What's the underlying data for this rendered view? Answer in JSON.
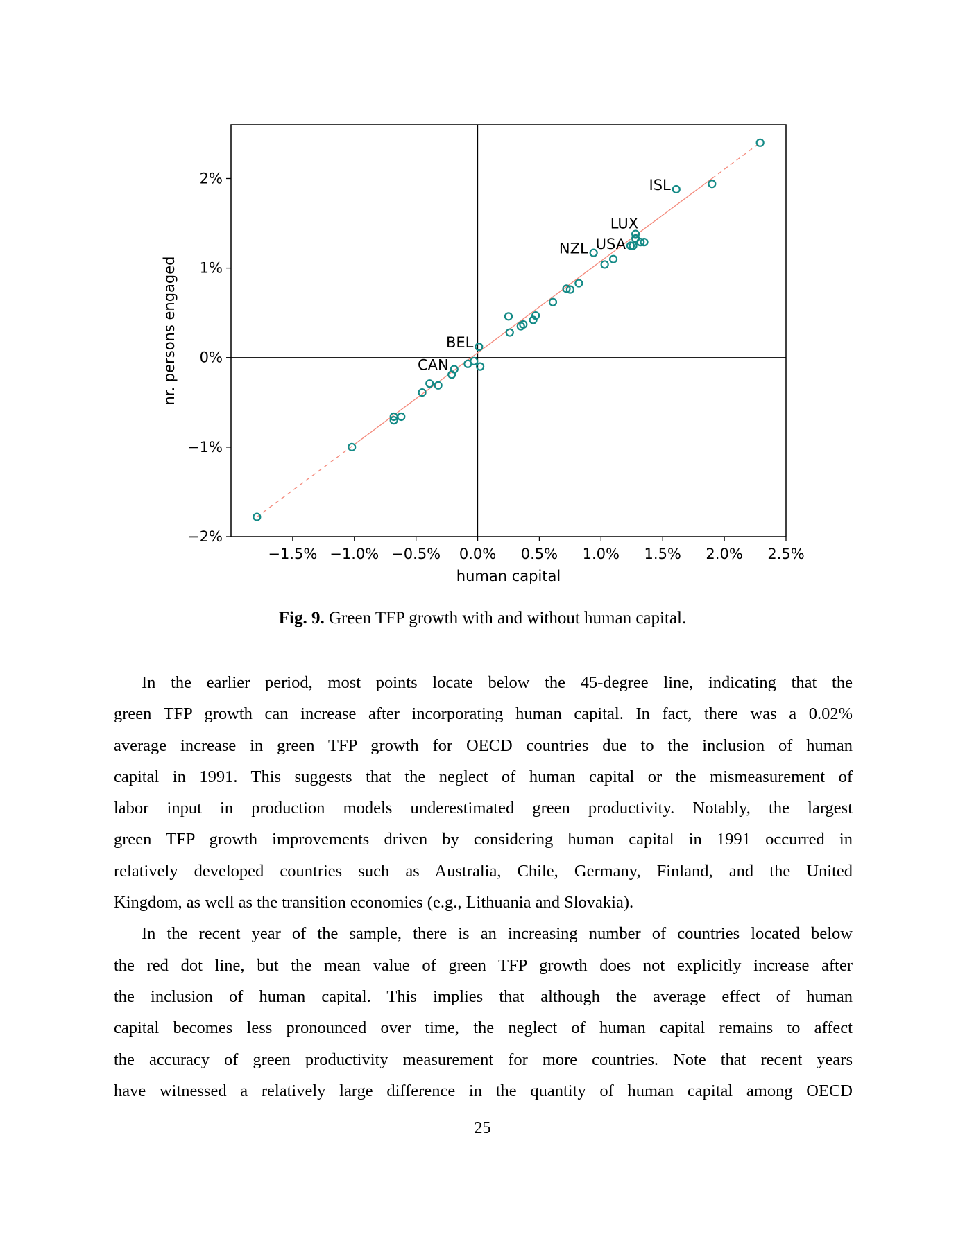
{
  "chart_data": {
    "type": "scatter",
    "xlabel": "human capital",
    "ylabel": "nr. persons engaged",
    "xlim": [
      -2.0,
      2.5
    ],
    "ylim": [
      -2.0,
      2.6
    ],
    "xticks": [
      -1.5,
      -1.0,
      -0.5,
      0.0,
      0.5,
      1.0,
      1.5,
      2.0,
      2.5
    ],
    "xtick_labels": [
      "−1.5%",
      "−1.0%",
      "−0.5%",
      "0.0%",
      "0.5%",
      "1.0%",
      "1.5%",
      "2.0%",
      "2.5%"
    ],
    "yticks": [
      -2,
      -1,
      0,
      1,
      2
    ],
    "ytick_labels": [
      "−2%",
      "−1%",
      "0%",
      "1%",
      "2%"
    ],
    "grid": false,
    "marker_color": "#138a86",
    "line_color": "#f4897b",
    "fit_line": {
      "x": [
        -1.79,
        2.29
      ],
      "y": [
        -1.78,
        2.4
      ],
      "solid_range": [
        -1.0,
        1.9
      ]
    },
    "points": [
      {
        "x": 2.29,
        "y": 2.4,
        "label": ""
      },
      {
        "x": 1.9,
        "y": 1.94,
        "label": ""
      },
      {
        "x": 1.61,
        "y": 1.88,
        "label": "ISL"
      },
      {
        "x": 1.28,
        "y": 1.38,
        "label": "LUX"
      },
      {
        "x": 1.28,
        "y": 1.33,
        "label": "USA"
      },
      {
        "x": 1.32,
        "y": 1.29,
        "label": ""
      },
      {
        "x": 1.35,
        "y": 1.29,
        "label": ""
      },
      {
        "x": 1.24,
        "y": 1.25,
        "label": ""
      },
      {
        "x": 1.26,
        "y": 1.25,
        "label": ""
      },
      {
        "x": 0.94,
        "y": 1.17,
        "label": "NZL"
      },
      {
        "x": 1.1,
        "y": 1.1,
        "label": ""
      },
      {
        "x": 1.03,
        "y": 1.04,
        "label": ""
      },
      {
        "x": 0.82,
        "y": 0.83,
        "label": ""
      },
      {
        "x": 0.72,
        "y": 0.77,
        "label": ""
      },
      {
        "x": 0.75,
        "y": 0.76,
        "label": ""
      },
      {
        "x": 0.61,
        "y": 0.62,
        "label": ""
      },
      {
        "x": 0.25,
        "y": 0.46,
        "label": ""
      },
      {
        "x": 0.47,
        "y": 0.47,
        "label": ""
      },
      {
        "x": 0.45,
        "y": 0.42,
        "label": ""
      },
      {
        "x": 0.37,
        "y": 0.37,
        "label": ""
      },
      {
        "x": 0.35,
        "y": 0.35,
        "label": ""
      },
      {
        "x": 0.26,
        "y": 0.28,
        "label": ""
      },
      {
        "x": 0.01,
        "y": 0.12,
        "label": "BEL"
      },
      {
        "x": -0.03,
        "y": -0.04,
        "label": ""
      },
      {
        "x": -0.08,
        "y": -0.07,
        "label": ""
      },
      {
        "x": 0.02,
        "y": -0.1,
        "label": ""
      },
      {
        "x": -0.19,
        "y": -0.13,
        "label": "CAN"
      },
      {
        "x": -0.21,
        "y": -0.19,
        "label": ""
      },
      {
        "x": -0.39,
        "y": -0.29,
        "label": ""
      },
      {
        "x": -0.32,
        "y": -0.31,
        "label": ""
      },
      {
        "x": -0.45,
        "y": -0.39,
        "label": ""
      },
      {
        "x": -0.68,
        "y": -0.66,
        "label": ""
      },
      {
        "x": -0.68,
        "y": -0.7,
        "label": ""
      },
      {
        "x": -0.62,
        "y": -0.66,
        "label": ""
      },
      {
        "x": -1.02,
        "y": -1.0,
        "label": ""
      },
      {
        "x": -1.79,
        "y": -1.78,
        "label": ""
      }
    ]
  },
  "caption": {
    "label": "Fig. 9.",
    "text": "Green TFP growth with and without human capital."
  },
  "paragraphs": [
    [
      "In the earlier period, most points locate below the 45-degree line, indicating that the",
      "green TFP growth can increase after incorporating human capital. In fact, there was a 0.02%",
      "average increase in green TFP growth for OECD countries due to the inclusion of human",
      "capital in 1991. This suggests that the neglect of human capital or the mismeasurement of",
      "labor input in production models underestimated green productivity. Notably, the largest",
      "green TFP growth improvements driven by considering human capital in 1991 occurred in",
      "relatively developed countries such as Australia, Chile, Germany, Finland, and the United",
      "Kingdom, as well as the transition economies (e.g., Lithuania and Slovakia)."
    ],
    [
      "In the recent year of the sample, there is an increasing number of countries located below",
      "the red dot line, but the mean value of green TFP growth does not explicitly increase after",
      "the inclusion of human capital. This implies that although the average effect of human",
      "capital becomes less pronounced over time, the neglect of human capital remains to affect",
      "the accuracy of green productivity measurement for more countries. Note that recent years",
      "have witnessed a relatively large difference in the quantity of human capital among OECD"
    ]
  ],
  "page_number": "25"
}
